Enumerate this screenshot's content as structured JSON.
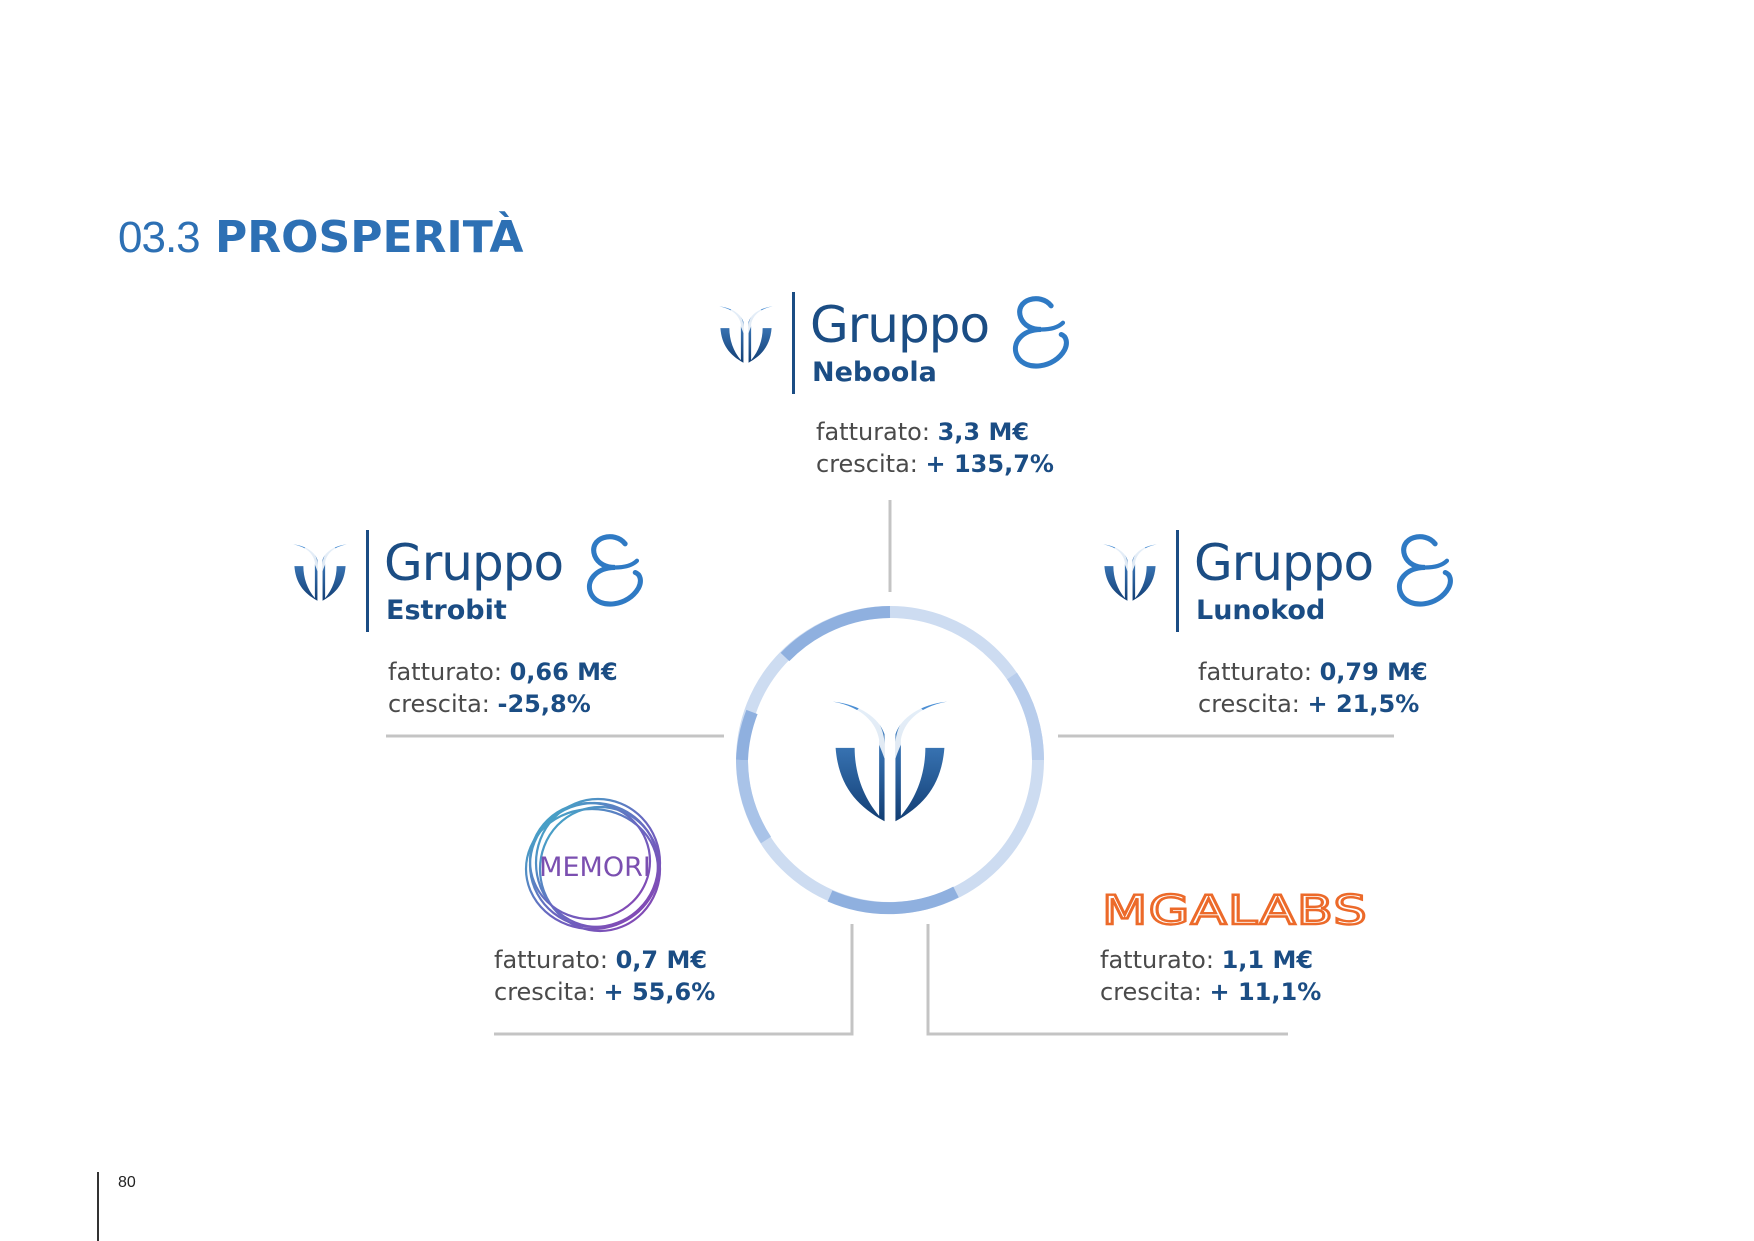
{
  "section": {
    "number": "03.3",
    "title": "PROSPERITÀ"
  },
  "companies": [
    {
      "word1": "Gruppo",
      "word2": "Neboola",
      "revenue_label": "fatturato:",
      "revenue_value": "3,3 M€",
      "growth_label": "crescita:",
      "growth_value": "+ 135,7%"
    },
    {
      "word1": "Gruppo",
      "word2": "Estrobit",
      "revenue_label": "fatturato:",
      "revenue_value": "0,66 M€",
      "growth_label": "crescita:",
      "growth_value": "-25,8%"
    },
    {
      "word1": "Gruppo",
      "word2": "Lunokod",
      "revenue_label": "fatturato:",
      "revenue_value": "0,79 M€",
      "growth_label": "crescita:",
      "growth_value": "+ 21,5%"
    },
    {
      "logo_text": "MEMORI",
      "revenue_label": "fatturato:",
      "revenue_value": "0,7 M€",
      "growth_label": "crescita:",
      "growth_value": "+ 55,6%"
    },
    {
      "logo_text": "MGALABS",
      "revenue_label": "fatturato:",
      "revenue_value": "1,1 M€",
      "growth_label": "crescita:",
      "growth_value": "+ 11,1%"
    }
  ],
  "page_number": "80",
  "colors": {
    "heading": "#2d70b4",
    "brand_dark": "#1b4d84",
    "brand_mid": "#2f6db5",
    "ring_light": "#cddcf1",
    "ring_mid": "#8fb0df",
    "connector": "#c4c4c4",
    "mgalabs_orange": "#ec6a2a",
    "memori_purple": "#7b4fb0",
    "memori_teal": "#3cb4c8"
  },
  "icons": {
    "group_emblem": "stylized-shield-icon",
    "ampersand": "script-ampersand-icon",
    "memori_logo": "circles-logo-icon"
  }
}
